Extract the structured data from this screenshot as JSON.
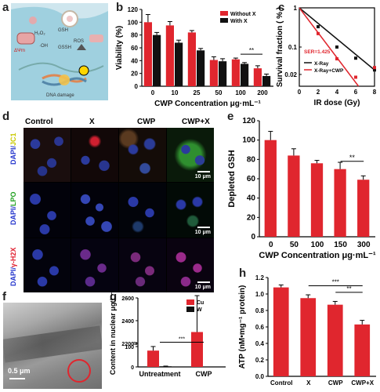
{
  "panels": {
    "a": "a",
    "b": "b",
    "c": "c",
    "d": "d",
    "e": "e",
    "f": "f",
    "g": "g",
    "h": "h"
  },
  "panel_a": {
    "labels": [
      "H₂O₂",
      "GSH",
      "ROS",
      "·OH",
      "GSSH",
      "ΔΨm",
      "DNA damage"
    ]
  },
  "panel_d": {
    "columns": [
      "Control",
      "X",
      "CWP",
      "CWP+X"
    ],
    "rows": [
      {
        "dapi": "DAPI/",
        "marker": "JC1",
        "marker_color": "#d8d800"
      },
      {
        "dapi": "DAPI/",
        "marker": "LPO",
        "marker_color": "#2fb02f"
      },
      {
        "dapi": "DAPI/",
        "marker": "γ-H2X",
        "marker_color": "#e8203a"
      }
    ],
    "scale_bar": "10 μm"
  },
  "panel_f": {
    "scale_bar": "0.5 μm"
  },
  "chart_data": [
    {
      "id": "b",
      "type": "bar",
      "xlabel": "CWP Concentration μg·mL⁻¹",
      "ylabel": "Viability (%)",
      "ylim": [
        0,
        120
      ],
      "yticks": [
        0,
        20,
        40,
        60,
        80,
        100,
        120
      ],
      "categories": [
        "0",
        "10",
        "25",
        "50",
        "100",
        "200"
      ],
      "series": [
        {
          "name": "Without X",
          "color": "#e0262e",
          "values": [
            100,
            95,
            84,
            41,
            42,
            28
          ],
          "errors": [
            12,
            6,
            3,
            5,
            2,
            4
          ]
        },
        {
          "name": "With X",
          "color": "#111111",
          "values": [
            80,
            68,
            56,
            39,
            35,
            16
          ],
          "errors": [
            4,
            4,
            3,
            4,
            2,
            3
          ]
        }
      ],
      "annotations": [
        "**"
      ]
    },
    {
      "id": "c",
      "type": "scatter",
      "xlabel": "IR dose (Gy)",
      "ylabel": "Survival fraction ( % )",
      "ylog": true,
      "xlim": [
        0,
        8
      ],
      "xticks": [
        0,
        2,
        4,
        6,
        8
      ],
      "yticks_labels": [
        "1",
        "0.1",
        "0.02"
      ],
      "annotation": "SER=1.425",
      "series": [
        {
          "name": "X-Ray",
          "color": "#111111",
          "x": [
            0,
            2,
            4,
            6,
            8
          ],
          "y": [
            1,
            0.33,
            0.1,
            0.052,
            0.026
          ]
        },
        {
          "name": "X-Ray+CWP",
          "color": "#e0262e",
          "x": [
            0,
            2,
            4,
            6,
            8
          ],
          "y": [
            1,
            0.22,
            0.05,
            0.017,
            0.03
          ]
        }
      ]
    },
    {
      "id": "e",
      "type": "bar",
      "xlabel": "CWP Concentration μg·mL⁻¹",
      "ylabel": "Depleted GSH",
      "ylim": [
        0,
        120
      ],
      "yticks": [
        0,
        20,
        40,
        60,
        80,
        100,
        120
      ],
      "categories": [
        "0",
        "50",
        "100",
        "150",
        "300"
      ],
      "series": [
        {
          "name": "",
          "color": "#e0262e",
          "values": [
            100,
            84,
            76,
            70,
            59
          ],
          "errors": [
            9,
            7,
            3,
            7,
            4
          ]
        }
      ],
      "annotations": [
        "**"
      ]
    },
    {
      "id": "g",
      "type": "bar",
      "ylabel": "Content in nuclear μg L⁻¹",
      "yticks_labels": [
        "0",
        "100",
        "2200",
        "2400",
        "2600"
      ],
      "categories": [
        "Untreatment",
        "CWP"
      ],
      "series": [
        {
          "name": "Cu",
          "color": "#e0262e",
          "values": [
            80,
            2300
          ],
          "errors": [
            20,
            320
          ]
        },
        {
          "name": "W",
          "color": "#111111",
          "values": [
            3,
            200
          ],
          "errors": [
            1,
            30
          ]
        }
      ],
      "annotations": [
        "***"
      ]
    },
    {
      "id": "h",
      "type": "bar",
      "ylabel": "ATP (nM•mg⁻¹ protein)",
      "ylim": [
        0,
        1.2
      ],
      "yticks": [
        0.0,
        0.2,
        0.4,
        0.6,
        0.8,
        1.0,
        1.2
      ],
      "categories": [
        "Control",
        "X",
        "CWP",
        "CWP+X"
      ],
      "series": [
        {
          "name": "",
          "color": "#e0262e",
          "values": [
            1.08,
            0.95,
            0.87,
            0.63
          ],
          "errors": [
            0.03,
            0.04,
            0.04,
            0.05
          ]
        }
      ],
      "annotations": [
        "***",
        "**"
      ]
    }
  ]
}
